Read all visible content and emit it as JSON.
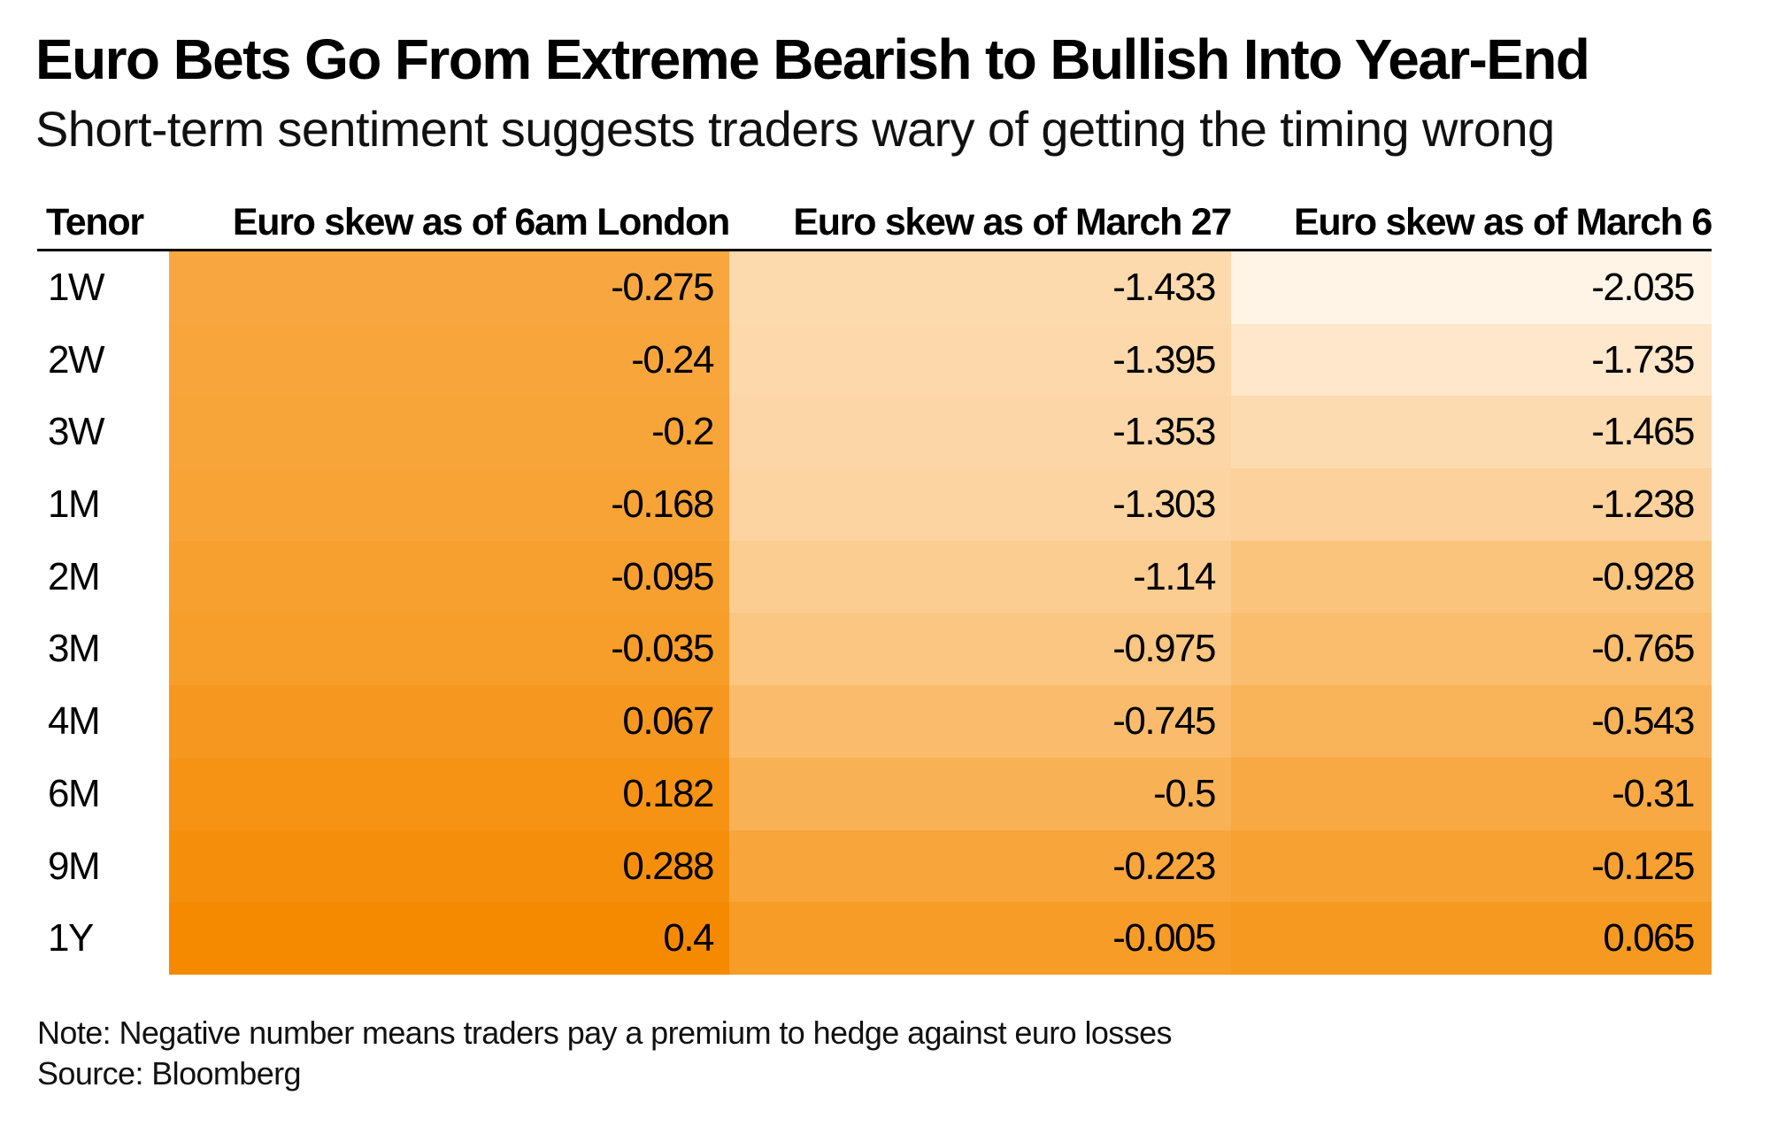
{
  "chart_data": {
    "type": "heatmap",
    "title": "Euro Bets Go From Extreme Bearish to Bullish Into Year-End",
    "subtitle": "Short-term sentiment suggests traders wary of getting the timing wrong",
    "columns": [
      "Tenor",
      "Euro skew as of 6am London",
      "Euro skew as of March 27",
      "Euro skew as of March 6"
    ],
    "rows": [
      "1W",
      "2W",
      "3W",
      "1M",
      "2M",
      "3M",
      "4M",
      "6M",
      "9M",
      "1Y"
    ],
    "series": [
      {
        "name": "Euro skew as of 6am London",
        "values": [
          "-0.275",
          "-0.24",
          "-0.2",
          "-0.168",
          "-0.095",
          "-0.035",
          "0.067",
          "0.182",
          "0.288",
          "0.4"
        ]
      },
      {
        "name": "Euro skew as of March 27",
        "values": [
          "-1.433",
          "-1.395",
          "-1.353",
          "-1.303",
          "-1.14",
          "-0.975",
          "-0.745",
          "-0.5",
          "-0.223",
          "-0.005"
        ]
      },
      {
        "name": "Euro skew as of March 6",
        "values": [
          "-2.035",
          "-1.735",
          "-1.465",
          "-1.238",
          "-0.928",
          "-0.765",
          "-0.543",
          "-0.31",
          "-0.125",
          "0.065"
        ]
      }
    ],
    "color_scale": {
      "low_value": -2.035,
      "high_value": 0.4,
      "low_color": "#fff4e6",
      "high_color": "#f58a00"
    },
    "note": "Note: Negative number means traders pay a premium to hedge against euro losses",
    "source": "Source: Bloomberg"
  }
}
